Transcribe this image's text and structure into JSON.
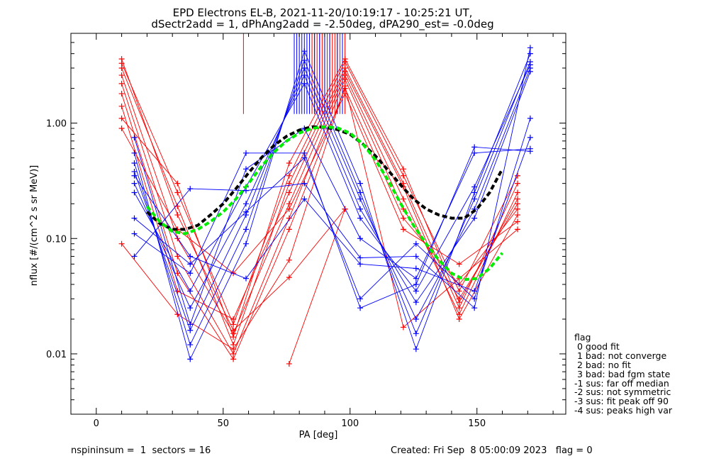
{
  "chart_data": {
    "type": "line",
    "title_lines": [
      "EPD Electrons EL-B, 2021-11-20/10:19:17 - 10:25:21 UT,",
      "dSectr2add = 1, dPhAng2add = -2.50deg, dPA290_est=  -0.0deg"
    ],
    "xlabel": "PA [deg]",
    "ylabel": "nflux [#/(cm^2 s sr MeV)]",
    "xlim": [
      -10,
      185
    ],
    "ylim": [
      0.003,
      6
    ],
    "yscale": "log",
    "xticks": [
      0,
      50,
      100,
      150
    ],
    "xtick_labels": [
      "0",
      "50",
      "100",
      "150"
    ],
    "yticks": [
      0.01,
      0.1,
      1.0
    ],
    "ytick_labels": [
      "0.01",
      "0.10",
      "1.00"
    ],
    "colors": {
      "red": "#ff0000",
      "blue": "#0000ff",
      "black": "#000000",
      "green": "#00ee00"
    },
    "red_series": [
      {
        "pa": [
          10,
          32,
          54,
          76,
          98,
          121,
          143,
          166
        ],
        "flux": [
          3.0,
          0.19,
          0.012,
          0.3,
          3.0,
          0.3,
          0.025,
          0.3
        ]
      },
      {
        "pa": [
          10,
          32,
          54,
          76,
          98,
          121,
          143,
          166
        ],
        "flux": [
          2.6,
          0.1,
          0.015,
          0.2,
          2.6,
          0.22,
          0.022,
          0.25
        ]
      },
      {
        "pa": [
          10,
          32,
          54,
          76,
          98,
          121,
          143,
          166
        ],
        "flux": [
          2.2,
          0.07,
          0.01,
          0.15,
          2.4,
          0.18,
          0.03,
          0.2
        ]
      },
      {
        "pa": [
          10,
          32,
          54,
          76,
          98,
          121,
          143,
          166
        ],
        "flux": [
          3.3,
          0.25,
          0.018,
          0.35,
          3.4,
          0.35,
          0.035,
          0.35
        ]
      },
      {
        "pa": [
          10,
          32,
          54,
          76,
          98,
          121,
          143,
          166
        ],
        "flux": [
          1.8,
          0.05,
          0.009,
          0.12,
          2.0,
          0.15,
          0.04,
          0.18
        ]
      },
      {
        "pa": [
          10,
          32,
          54,
          76,
          98,
          121,
          143,
          166
        ],
        "flux": [
          1.4,
          0.035,
          0.02,
          0.25,
          2.8,
          0.28,
          0.02,
          0.16
        ]
      },
      {
        "pa": [
          10,
          32,
          54,
          76,
          98,
          121,
          143,
          166
        ],
        "flux": [
          1.1,
          0.3,
          0.014,
          0.45,
          3.6,
          0.4,
          0.028,
          0.22
        ]
      },
      {
        "pa": [
          10,
          32,
          54,
          76,
          98,
          121,
          143,
          166
        ],
        "flux": [
          0.9,
          0.12,
          0.05,
          0.18,
          1.8,
          0.12,
          0.06,
          0.14
        ]
      },
      {
        "pa": [
          10,
          32,
          54,
          76,
          98,
          121,
          143,
          166
        ],
        "flux": [
          0.09,
          0.022,
          0.011,
          0.065,
          2.1,
          0.017,
          0.045,
          0.12
        ]
      },
      {
        "pa": [
          10,
          32,
          54,
          76,
          98
        ],
        "flux": [
          3.6,
          0.16,
          0.016,
          0.046,
          0.18
        ]
      },
      {
        "pa": [
          76,
          98
        ],
        "flux": [
          0.0082,
          0.18
        ]
      }
    ],
    "blue_series": [
      {
        "pa": [
          15,
          37,
          59,
          82,
          104,
          126,
          149,
          171
        ],
        "flux": [
          0.55,
          0.009,
          0.09,
          4.2,
          0.3,
          0.011,
          0.25,
          4.0
        ]
      },
      {
        "pa": [
          15,
          37,
          59,
          82,
          104,
          126,
          149,
          171
        ],
        "flux": [
          0.45,
          0.012,
          0.12,
          3.5,
          0.25,
          0.015,
          0.22,
          3.4
        ]
      },
      {
        "pa": [
          15,
          37,
          59,
          82,
          104,
          126,
          149,
          171
        ],
        "flux": [
          0.38,
          0.016,
          0.16,
          3.0,
          0.22,
          0.02,
          0.18,
          3.0
        ]
      },
      {
        "pa": [
          15,
          37,
          59,
          82,
          104,
          126,
          149,
          171
        ],
        "flux": [
          0.3,
          0.025,
          0.2,
          2.6,
          0.18,
          0.028,
          0.15,
          2.8
        ]
      },
      {
        "pa": [
          15,
          37,
          59,
          82,
          104,
          126,
          149,
          171
        ],
        "flux": [
          0.25,
          0.035,
          0.28,
          2.2,
          0.15,
          0.035,
          0.28,
          3.2
        ]
      },
      {
        "pa": [
          15,
          37,
          59,
          82,
          104,
          126,
          149,
          171
        ],
        "flux": [
          0.75,
          0.018,
          0.4,
          0.9,
          0.1,
          0.045,
          0.55,
          0.6
        ]
      },
      {
        "pa": [
          15,
          37,
          59,
          82,
          104,
          126,
          149,
          171
        ],
        "flux": [
          0.15,
          0.06,
          0.17,
          0.5,
          0.03,
          0.09,
          0.03,
          1.1
        ]
      },
      {
        "pa": [
          15,
          37,
          59,
          82,
          104,
          126,
          149,
          171
        ],
        "flux": [
          0.11,
          0.05,
          0.55,
          0.55,
          0.025,
          0.04,
          0.62,
          0.57
        ]
      },
      {
        "pa": [
          15,
          37,
          59,
          82,
          104,
          126,
          149,
          171
        ],
        "flux": [
          0.07,
          0.27,
          0.26,
          0.3,
          0.068,
          0.07,
          0.025,
          4.5
        ]
      },
      {
        "pa": [
          15,
          37,
          59,
          82,
          104,
          126,
          149,
          171
        ],
        "flux": [
          0.35,
          0.07,
          0.045,
          0.22,
          0.06,
          0.055,
          0.035,
          0.75
        ]
      }
    ],
    "red_error_bars": [
      {
        "pa": 58,
        "lo": 1.2,
        "hi": 6
      },
      {
        "pa": 85,
        "lo": 1.2,
        "hi": 6
      },
      {
        "pa": 86,
        "lo": 1.2,
        "hi": 6
      },
      {
        "pa": 87,
        "lo": 1.2,
        "hi": 6
      },
      {
        "pa": 88,
        "lo": 1.2,
        "hi": 6
      },
      {
        "pa": 89,
        "lo": 1.2,
        "hi": 6
      },
      {
        "pa": 90,
        "lo": 1.2,
        "hi": 6
      },
      {
        "pa": 91,
        "lo": 1.2,
        "hi": 6
      },
      {
        "pa": 92,
        "lo": 1.2,
        "hi": 6
      },
      {
        "pa": 93,
        "lo": 1.2,
        "hi": 6
      },
      {
        "pa": 94,
        "lo": 1.2,
        "hi": 6
      },
      {
        "pa": 95,
        "lo": 1.2,
        "hi": 6
      },
      {
        "pa": 96,
        "lo": 1.2,
        "hi": 6
      },
      {
        "pa": 97,
        "lo": 1.2,
        "hi": 6
      },
      {
        "pa": 98,
        "lo": 1.2,
        "hi": 6
      }
    ],
    "blue_error_bars": [
      {
        "pa": 78,
        "lo": 1.2,
        "hi": 6
      },
      {
        "pa": 79,
        "lo": 1.2,
        "hi": 6
      },
      {
        "pa": 80,
        "lo": 1.2,
        "hi": 6
      },
      {
        "pa": 81,
        "lo": 1.2,
        "hi": 6
      },
      {
        "pa": 82,
        "lo": 1.2,
        "hi": 6
      },
      {
        "pa": 83,
        "lo": 1.2,
        "hi": 6
      },
      {
        "pa": 84,
        "lo": 1.2,
        "hi": 6
      },
      {
        "pa": 86,
        "lo": 1.2,
        "hi": 6
      },
      {
        "pa": 88,
        "lo": 1.2,
        "hi": 6
      },
      {
        "pa": 90,
        "lo": 1.2,
        "hi": 6
      },
      {
        "pa": 92,
        "lo": 1.2,
        "hi": 6
      },
      {
        "pa": 95,
        "lo": 1.2,
        "hi": 6
      },
      {
        "pa": 97,
        "lo": 1.2,
        "hi": 6
      }
    ],
    "fit_black": {
      "pa": [
        20,
        25,
        30,
        35,
        40,
        45,
        50,
        55,
        60,
        65,
        70,
        75,
        80,
        85,
        90,
        95,
        100,
        105,
        110,
        115,
        120,
        125,
        130,
        135,
        140,
        145,
        150,
        155,
        160
      ],
      "flux": [
        0.17,
        0.135,
        0.12,
        0.12,
        0.13,
        0.16,
        0.2,
        0.27,
        0.37,
        0.5,
        0.64,
        0.77,
        0.87,
        0.93,
        0.92,
        0.88,
        0.8,
        0.66,
        0.52,
        0.39,
        0.29,
        0.22,
        0.18,
        0.16,
        0.15,
        0.15,
        0.18,
        0.25,
        0.4
      ]
    },
    "fit_green": {
      "pa": [
        20,
        25,
        30,
        35,
        40,
        45,
        50,
        55,
        60,
        65,
        70,
        75,
        80,
        85,
        90,
        95,
        100,
        105,
        110,
        115,
        120,
        125,
        130,
        135,
        140,
        145,
        150,
        155,
        160
      ],
      "flux": [
        0.19,
        0.14,
        0.115,
        0.11,
        0.12,
        0.14,
        0.17,
        0.22,
        0.3,
        0.42,
        0.56,
        0.7,
        0.82,
        0.9,
        0.93,
        0.91,
        0.82,
        0.66,
        0.48,
        0.32,
        0.2,
        0.13,
        0.09,
        0.065,
        0.05,
        0.044,
        0.045,
        0.055,
        0.075
      ]
    }
  },
  "legend": {
    "lines": [
      "flag",
      " 0 good fit",
      " 1 bad: not converge",
      " 2 bad: no fit",
      " 3 bad: bad fgm state",
      "-1 sus: far off median",
      "-2 sus: not symmetric",
      "-3 sus: fit peak off 90",
      "-4 sus: peaks high var"
    ]
  },
  "footer": {
    "left": "nspininsum =  1  sectors = 16",
    "right": "Created: Fri Sep  8 05:00:09 2023   flag = 0"
  }
}
